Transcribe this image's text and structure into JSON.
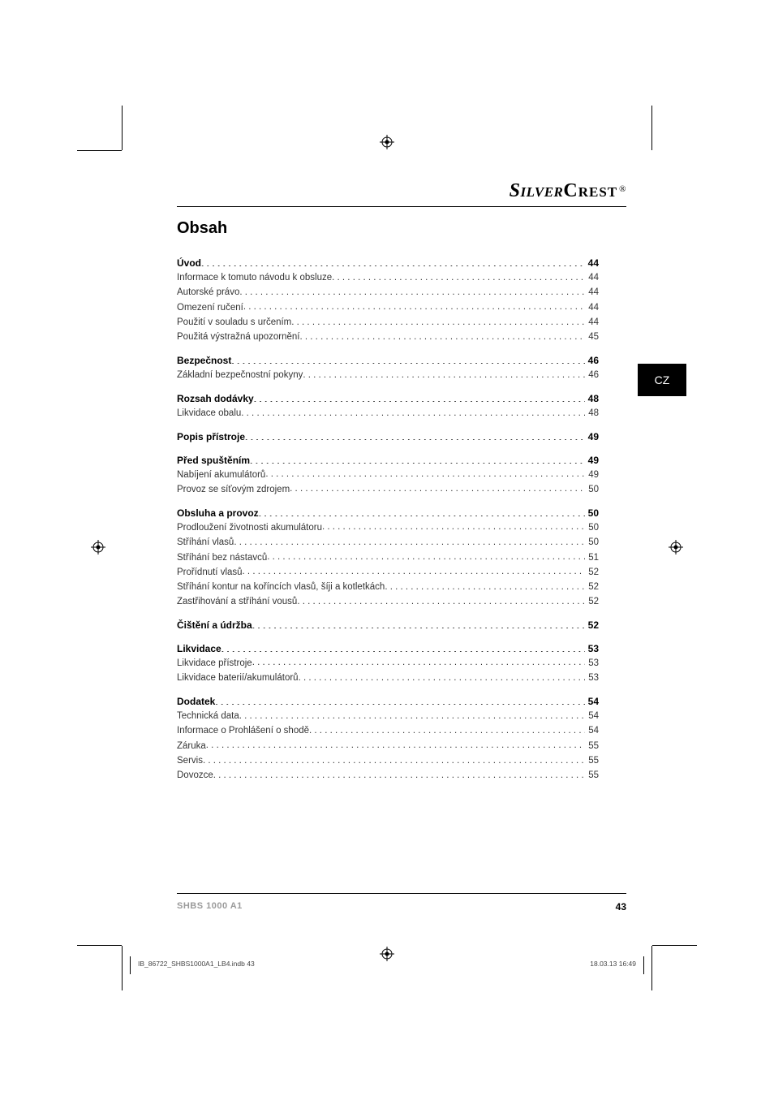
{
  "brand": {
    "part1": "Silver",
    "part2": "Crest",
    "reg": "®"
  },
  "side_tab": "CZ",
  "title": "Obsah",
  "toc": [
    {
      "head": {
        "label": "Úvod",
        "page": "44"
      },
      "items": [
        {
          "label": "Informace k tomuto návodu k obsluze",
          "page": "44"
        },
        {
          "label": "Autorské právo",
          "page": "44"
        },
        {
          "label": "Omezení ručení",
          "page": "44"
        },
        {
          "label": "Použití v souladu s určením",
          "page": "44"
        },
        {
          "label": "Použitá výstražná upozornění",
          "page": "45"
        }
      ]
    },
    {
      "head": {
        "label": "Bezpečnost",
        "page": "46"
      },
      "items": [
        {
          "label": "Základní bezpečnostní pokyny",
          "page": "46"
        }
      ]
    },
    {
      "head": {
        "label": "Rozsah dodávky",
        "page": "48"
      },
      "items": [
        {
          "label": "Likvidace obalu",
          "page": "48"
        }
      ]
    },
    {
      "head": {
        "label": "Popis přístroje",
        "page": "49"
      },
      "items": []
    },
    {
      "head": {
        "label": "Před spuštěním",
        "page": "49"
      },
      "items": [
        {
          "label": "Nabíjení akumulátorů",
          "page": "49"
        },
        {
          "label": "Provoz se síťovým zdrojem",
          "page": "50"
        }
      ]
    },
    {
      "head": {
        "label": "Obsluha a provoz",
        "page": "50"
      },
      "items": [
        {
          "label": "Prodloužení životnosti akumulátoru",
          "page": "50"
        },
        {
          "label": "Stříhání vlasů",
          "page": "50"
        },
        {
          "label": "Stříhání bez nástavců",
          "page": "51"
        },
        {
          "label": "Prořídnutí vlasů",
          "page": "52"
        },
        {
          "label": "Stříhání kontur na koříncích vlasů, šíji a kotletkách",
          "page": "52"
        },
        {
          "label": "Zastřihování a stříhání vousů",
          "page": "52"
        }
      ]
    },
    {
      "head": {
        "label": "Čištění a údržba",
        "page": "52"
      },
      "items": []
    },
    {
      "head": {
        "label": "Likvidace",
        "page": "53"
      },
      "items": [
        {
          "label": "Likvidace přístroje",
          "page": "53"
        },
        {
          "label": "Likvidace baterií/akumulátorů",
          "page": "53"
        }
      ]
    },
    {
      "head": {
        "label": "Dodatek",
        "page": "54"
      },
      "items": [
        {
          "label": "Technická data",
          "page": "54"
        },
        {
          "label": "Informace o Prohlášení o shodě",
          "page": "54"
        },
        {
          "label": "Záruka",
          "page": "55"
        },
        {
          "label": "Servis",
          "page": "55"
        },
        {
          "label": "Dovozce",
          "page": "55"
        }
      ]
    }
  ],
  "footer": {
    "model": "SHBS 1000 A1",
    "page": "43"
  },
  "imprint": {
    "left": "IB_86722_SHBS1000A1_LB4.indb   43",
    "right": "18.03.13   16:49"
  }
}
